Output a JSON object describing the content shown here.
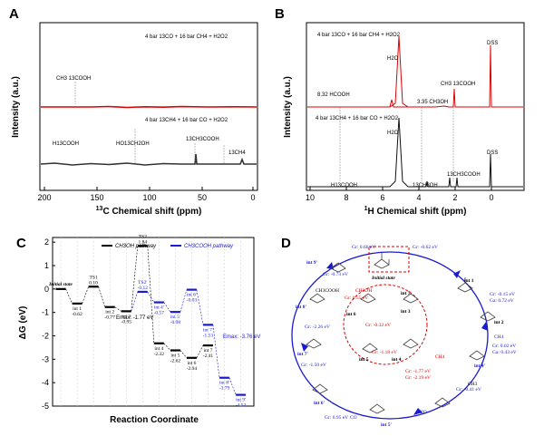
{
  "panels": {
    "A": {
      "label": "A",
      "ylabel": "Intensity (a.u.)",
      "xlabel_num": "13",
      "xlabel_rest": "C Chemical shift (ppm)",
      "xticks": [
        "200",
        "150",
        "100",
        "50",
        "0"
      ],
      "legend_top": "4 bar 13CO + 16 bar CH4 + H2O2",
      "legend_bottom": "4 bar 13CH4 + 16 bar CO + H2O2",
      "peaks": [
        "CH3 13COOH",
        "13CH3COOH",
        "H13COOH",
        "HO13CH2OH",
        "13CH4"
      ]
    },
    "B": {
      "label": "B",
      "ylabel": "Intensity (a.u.)",
      "xlabel_num": "1",
      "xlabel_rest": "H Chemical shift (ppm)",
      "xticks": [
        "10",
        "8",
        "6",
        "4",
        "2",
        "0"
      ],
      "legend_top": "4 bar 13CO + 16 bar CH4 + H2O2",
      "legend_bottom": "4 bar 13CH4 + 16 bar CO + H2O2",
      "labels": [
        "H2O",
        "DSS",
        "CH3 13COOH",
        "8.32 HCOOH",
        "3.35 CH3OH",
        "H2O",
        "DSS",
        "H13COOH",
        "13CH3OH",
        "13CH3COOH"
      ]
    },
    "C": {
      "label": "C",
      "ylabel": "ΔG (eV)",
      "xlabel": "Reaction Coordinate",
      "legend": [
        "CH3OH pathway",
        "CH3COOH pathway"
      ],
      "yticks": [
        "2",
        "1",
        "0",
        "-1",
        "-2",
        "-3",
        "-4",
        "-5"
      ],
      "emax1": "Emax: -1.77 eV",
      "emax2": "Emax: -3.76 eV"
    },
    "D": {
      "label": "D",
      "center": "Initial state",
      "states": [
        "int 1",
        "int 2",
        "int 3",
        "int 4'",
        "int 4",
        "int 5",
        "int 5'",
        "int 6",
        "int 6'",
        "int 7",
        "int 7'",
        "int 8'",
        "int 9'"
      ],
      "energies": [
        "Gr: 0.66 eV",
        "Gr: -0.62 eV",
        "Gr: -0.15 eV",
        "Ga: 0.72 eV",
        "Gr: 0.02 eV",
        "Ga: 0.43 eV",
        "Gr: -0.41 eV",
        "Gr: 0.95 eV",
        "Gr: -1.50 eV",
        "Gr: -2.26 eV",
        "Gr: -0.73 eV",
        "Gr: 0.55 eV",
        "Gr: -0.32 eV",
        "Gr: -1.77 eV",
        "Gr: -2.19 eV",
        "Gr: -1.18 eV"
      ],
      "species": [
        "CH3COOH",
        "CH3OH",
        "CH4",
        "H2O",
        "CO",
        "CH4",
        "CH3"
      ]
    }
  },
  "chart_data": {
    "type": "line",
    "title": "",
    "xlabel": "Reaction Coordinate",
    "ylabel": "ΔG (eV)",
    "ylim": [
      -5,
      2.2
    ],
    "series": [
      {
        "name": "CH3OH pathway",
        "color": "#000000",
        "states": [
          {
            "x": 1,
            "y": 0,
            "label": "Initial state"
          },
          {
            "x": 2,
            "y": -0.62,
            "label": "int 1\n-0.62"
          },
          {
            "x": 3,
            "y": 0.1,
            "label": "TS1\n0.10"
          },
          {
            "x": 4,
            "y": -0.77,
            "label": "int 2\n-0.77"
          },
          {
            "x": 5,
            "y": -0.95,
            "label": "int 3\n-0.95"
          },
          {
            "x": 6,
            "y": 1.84,
            "label": "TS2\n1.84"
          },
          {
            "x": 7,
            "y": -2.32,
            "label": "int 4\n-2.32"
          },
          {
            "x": 8,
            "y": -2.62,
            "label": "int 5\n-2.62"
          },
          {
            "x": 9,
            "y": -2.94,
            "label": "int 6\n-2.94"
          },
          {
            "x": 10,
            "y": -2.41,
            "label": "int 7\n-2.41"
          }
        ]
      },
      {
        "name": "CH3COOH pathway",
        "color": "#1a1ad0",
        "states": [
          {
            "x": 6,
            "y": -0.12,
            "label": "TS2'\n-0.12"
          },
          {
            "x": 7,
            "y": -0.57,
            "label": "int 4'\n-0.57"
          },
          {
            "x": 8,
            "y": -0.98,
            "label": "int 5'\n-0.98"
          },
          {
            "x": 9,
            "y": -0.03,
            "label": "int 6'\n-0.03"
          },
          {
            "x": 10,
            "y": -1.53,
            "label": "int 7'\n-1.53"
          },
          {
            "x": 11,
            "y": -3.79,
            "label": "int 8'\n-3.79"
          },
          {
            "x": 12,
            "y": -4.52,
            "label": "int 9'\n-4.52"
          }
        ]
      }
    ]
  }
}
